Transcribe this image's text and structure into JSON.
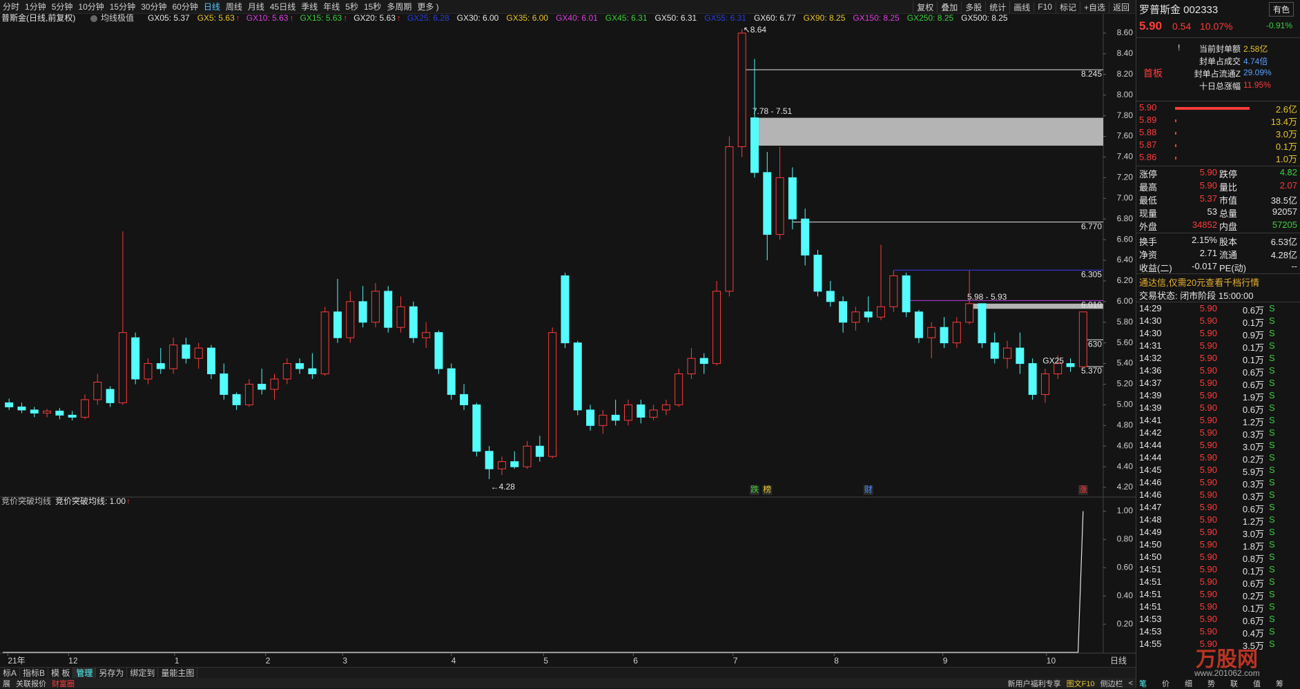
{
  "toolbar": {
    "periods": [
      "分时",
      "1分钟",
      "5分钟",
      "10分钟",
      "15分钟",
      "30分钟",
      "60分钟",
      "日线",
      "周线",
      "月线",
      "45日线",
      "季线",
      "年线",
      "5秒",
      "15秒",
      "多周期",
      "更多 )"
    ],
    "active": "日线",
    "actions": [
      "复权",
      "叠加",
      "多股",
      "统计",
      "画线",
      "F10",
      "标记",
      "+自选",
      "返回"
    ]
  },
  "chart_data": [
    {
      "type": "candlestick",
      "title": "普斯金(日线,前复权)",
      "indicator": "均线极值",
      "ma_labels": [
        {
          "text": "GX05: 5.37",
          "color": "#e6e6e6"
        },
        {
          "text": "GX5: 5.63",
          "color": "#e8c62e",
          "arrow": "↑"
        },
        {
          "text": "GX10: 5.63",
          "color": "#e040e0",
          "arrow": "↑"
        },
        {
          "text": "GX15: 5.63",
          "color": "#3ccf3c",
          "arrow": "↑"
        },
        {
          "text": "GX20: 5.63",
          "color": "#e6e6e6",
          "arrow": "↑"
        },
        {
          "text": "GX25: 6.28",
          "color": "#2a3fd8"
        },
        {
          "text": "GX30: 6.00",
          "color": "#e6e6e6"
        },
        {
          "text": "GX35: 6.00",
          "color": "#e8c62e"
        },
        {
          "text": "GX40: 6.01",
          "color": "#e040e0"
        },
        {
          "text": "GX45: 6.31",
          "color": "#3ccf3c"
        },
        {
          "text": "GX50: 6.31",
          "color": "#e6e6e6"
        },
        {
          "text": "GX55: 6.31",
          "color": "#2a3fd8"
        },
        {
          "text": "GX60: 6.77",
          "color": "#e6e6e6"
        },
        {
          "text": "GX90: 8.25",
          "color": "#e8c62e"
        },
        {
          "text": "GX150: 8.25",
          "color": "#e040e0"
        },
        {
          "text": "GX250: 8.25",
          "color": "#3ccf3c"
        },
        {
          "text": "GX500: 8.25",
          "color": "#e6e6e6"
        }
      ],
      "up_color": "#ff3b3b",
      "down_color": "#54fcfc",
      "candles": [
        [
          5.02,
          5.06,
          4.95,
          4.98
        ],
        [
          4.98,
          5.02,
          4.92,
          4.95
        ],
        [
          4.95,
          4.98,
          4.88,
          4.92
        ],
        [
          4.92,
          4.96,
          4.88,
          4.94
        ],
        [
          4.94,
          4.97,
          4.86,
          4.9
        ],
        [
          4.9,
          4.94,
          4.85,
          4.88
        ],
        [
          4.88,
          5.1,
          4.86,
          5.05
        ],
        [
          5.05,
          5.3,
          5.0,
          5.22
        ],
        [
          5.15,
          5.18,
          4.98,
          5.02
        ],
        [
          5.02,
          6.68,
          5.0,
          5.7
        ],
        [
          5.65,
          5.7,
          5.2,
          5.25
        ],
        [
          5.25,
          5.45,
          5.2,
          5.4
        ],
        [
          5.4,
          5.55,
          5.3,
          5.35
        ],
        [
          5.35,
          5.65,
          5.3,
          5.58
        ],
        [
          5.58,
          5.65,
          5.4,
          5.45
        ],
        [
          5.45,
          5.6,
          5.35,
          5.55
        ],
        [
          5.55,
          5.58,
          5.25,
          5.3
        ],
        [
          5.3,
          5.4,
          5.05,
          5.1
        ],
        [
          5.1,
          5.12,
          4.95,
          5.0
        ],
        [
          5.0,
          5.25,
          4.98,
          5.2
        ],
        [
          5.2,
          5.35,
          5.1,
          5.15
        ],
        [
          5.15,
          5.3,
          5.05,
          5.25
        ],
        [
          5.25,
          5.45,
          5.2,
          5.4
        ],
        [
          5.4,
          5.45,
          5.3,
          5.35
        ],
        [
          5.35,
          5.5,
          5.25,
          5.3
        ],
        [
          5.3,
          5.95,
          5.28,
          5.9
        ],
        [
          5.9,
          6.22,
          5.6,
          5.65
        ],
        [
          5.65,
          6.1,
          5.6,
          6.0
        ],
        [
          6.0,
          6.15,
          5.75,
          5.8
        ],
        [
          5.8,
          6.18,
          5.75,
          6.1
        ],
        [
          6.1,
          6.15,
          5.7,
          5.75
        ],
        [
          5.75,
          6.05,
          5.7,
          5.95
        ],
        [
          5.95,
          6.0,
          5.6,
          5.65
        ],
        [
          5.65,
          5.8,
          5.55,
          5.7
        ],
        [
          5.7,
          5.72,
          5.3,
          5.35
        ],
        [
          5.35,
          5.4,
          5.05,
          5.1
        ],
        [
          5.1,
          5.2,
          4.95,
          5.0
        ],
        [
          5.0,
          5.02,
          4.5,
          4.55
        ],
        [
          4.55,
          4.6,
          4.28,
          4.38
        ],
        [
          4.38,
          4.5,
          4.32,
          4.45
        ],
        [
          4.45,
          4.55,
          4.38,
          4.4
        ],
        [
          4.4,
          4.65,
          4.38,
          4.6
        ],
        [
          4.6,
          4.7,
          4.45,
          4.5
        ],
        [
          4.5,
          5.75,
          4.48,
          5.7
        ],
        [
          6.25,
          6.28,
          5.55,
          5.6
        ],
        [
          5.6,
          5.62,
          4.9,
          4.95
        ],
        [
          4.95,
          5.0,
          4.75,
          4.8
        ],
        [
          4.8,
          4.95,
          4.72,
          4.9
        ],
        [
          4.9,
          5.05,
          4.8,
          4.85
        ],
        [
          4.85,
          5.05,
          4.8,
          5.0
        ],
        [
          5.0,
          5.05,
          4.82,
          4.88
        ],
        [
          4.88,
          5.0,
          4.85,
          4.95
        ],
        [
          4.95,
          5.05,
          4.9,
          5.0
        ],
        [
          5.0,
          5.35,
          4.98,
          5.3
        ],
        [
          5.3,
          5.55,
          5.25,
          5.45
        ],
        [
          5.45,
          5.5,
          5.3,
          5.4
        ],
        [
          5.4,
          6.2,
          5.38,
          6.1
        ],
        [
          6.1,
          7.6,
          6.05,
          7.5
        ],
        [
          7.5,
          8.64,
          7.4,
          8.6
        ],
        [
          7.78,
          8.35,
          7.2,
          7.25
        ],
        [
          7.25,
          7.45,
          6.4,
          6.65
        ],
        [
          6.65,
          7.5,
          6.6,
          7.2
        ],
        [
          7.2,
          7.3,
          6.7,
          6.8
        ],
        [
          6.8,
          6.9,
          6.35,
          6.45
        ],
        [
          6.45,
          6.5,
          6.05,
          6.1
        ],
        [
          6.1,
          6.2,
          5.95,
          6.0
        ],
        [
          6.0,
          6.05,
          5.7,
          5.8
        ],
        [
          5.8,
          5.95,
          5.72,
          5.9
        ],
        [
          5.9,
          6.05,
          5.8,
          5.85
        ],
        [
          5.85,
          6.55,
          5.82,
          5.95
        ],
        [
          5.95,
          6.3,
          5.9,
          6.25
        ],
        [
          6.25,
          6.28,
          5.85,
          5.9
        ],
        [
          5.9,
          5.92,
          5.6,
          5.65
        ],
        [
          5.65,
          5.8,
          5.45,
          5.75
        ],
        [
          5.75,
          5.85,
          5.55,
          5.6
        ],
        [
          5.6,
          5.85,
          5.55,
          5.8
        ],
        [
          5.8,
          6.3,
          5.78,
          5.98
        ],
        [
          5.98,
          5.98,
          5.55,
          5.6
        ],
        [
          5.6,
          5.7,
          5.4,
          5.45
        ],
        [
          5.45,
          5.62,
          5.35,
          5.55
        ],
        [
          5.55,
          5.7,
          5.3,
          5.4
        ],
        [
          5.4,
          5.45,
          5.05,
          5.1
        ],
        [
          5.1,
          5.35,
          5.02,
          5.3
        ],
        [
          5.3,
          5.48,
          5.25,
          5.4
        ],
        [
          5.4,
          5.45,
          5.32,
          5.37
        ],
        [
          5.37,
          5.9,
          5.37,
          5.9
        ]
      ],
      "xlim": [
        0,
        86
      ],
      "xticks": [
        {
          "value": 0.4,
          "label": "21年"
        },
        {
          "value": 5.2,
          "label": "12"
        },
        {
          "value": 13.6,
          "label": "1"
        },
        {
          "value": 20.8,
          "label": "2"
        },
        {
          "value": 26.9,
          "label": "3"
        },
        {
          "value": 35.5,
          "label": "4"
        },
        {
          "value": 42.8,
          "label": "5"
        },
        {
          "value": 49.9,
          "label": "6"
        },
        {
          "value": 57.8,
          "label": "7"
        },
        {
          "value": 65.8,
          "label": "8"
        },
        {
          "value": 74.4,
          "label": "9"
        },
        {
          "value": 82.6,
          "label": "10"
        }
      ],
      "ylim": [
        4.12,
        8.68
      ],
      "yticks": [
        {
          "value": 4.2,
          "label": "4.20"
        },
        {
          "value": 4.4,
          "label": "4.40"
        },
        {
          "value": 4.6,
          "label": "4.60"
        },
        {
          "value": 4.8,
          "label": "4.80"
        },
        {
          "value": 5.0,
          "label": "5.00"
        },
        {
          "value": 5.2,
          "label": "5.20"
        },
        {
          "value": 5.4,
          "label": "5.40"
        },
        {
          "value": 5.6,
          "label": "5.60"
        },
        {
          "value": 5.8,
          "label": "5.80"
        },
        {
          "value": 6.0,
          "label": "6.00"
        },
        {
          "value": 6.2,
          "label": "6.20"
        },
        {
          "value": 6.4,
          "label": "6.40"
        },
        {
          "value": 6.6,
          "label": "6.60"
        },
        {
          "value": 6.8,
          "label": "6.80"
        },
        {
          "value": 7.0,
          "label": "7.00"
        },
        {
          "value": 7.2,
          "label": "7.20"
        },
        {
          "value": 7.4,
          "label": "7.40"
        },
        {
          "value": 7.6,
          "label": "7.60"
        },
        {
          "value": 7.8,
          "label": "7.80"
        },
        {
          "value": 8.0,
          "label": "8.00"
        },
        {
          "value": 8.2,
          "label": "8.20"
        },
        {
          "value": 8.4,
          "label": "8.40"
        },
        {
          "value": 8.6,
          "label": "8.60"
        }
      ],
      "levels": [
        {
          "value": 8.245,
          "label": "8.245",
          "from": 58,
          "color": "#e6e6e6"
        },
        {
          "value": 6.77,
          "label": "6.770",
          "from": 62,
          "color": "#e6e6e6"
        },
        {
          "value": 6.305,
          "label": "6.305",
          "from": 70,
          "color": "#3a3aff"
        },
        {
          "value": 6.01,
          "label": "6.010",
          "from": 71,
          "color": "#c040e0"
        },
        {
          "value": 5.63,
          "label": "5.630",
          "from": 85,
          "color": "#e6e6e6"
        },
        {
          "value": 5.37,
          "label": "5.370",
          "from": 85,
          "color": "#e6e6e6"
        }
      ],
      "zones": [
        {
          "low": 7.51,
          "high": 7.78,
          "label": "7.78 - 7.51",
          "from": 59,
          "color": "#b4b4b4"
        },
        {
          "low": 5.93,
          "high": 5.98,
          "label": "5.98 - 5.93",
          "from": 76,
          "color": "#b4b4b4"
        }
      ],
      "extremes": [
        {
          "value": 8.64,
          "label": "8.64",
          "index": 58,
          "arrow": "↖"
        },
        {
          "value": 4.28,
          "label": "4.28",
          "index": 38,
          "arrow": "←"
        }
      ],
      "line_tags": [
        {
          "text": "GX25",
          "index": 82.3,
          "price": 5.42
        }
      ],
      "markers": [
        {
          "text": "跌",
          "index": 59,
          "color": "#3ccf3c"
        },
        {
          "text": "榜",
          "index": 60,
          "color": "#e8c62e"
        },
        {
          "text": "财",
          "index": 68,
          "color": "#4a8cff"
        },
        {
          "text": "涨",
          "index": 85,
          "color": "#ff3b3b"
        }
      ],
      "period_label": "日线"
    },
    {
      "type": "line",
      "title": "竞价突破均线",
      "series": [
        {
          "name": "竞价突破均线: 1.00",
          "arrow": "↑",
          "color": "#e6e6e6",
          "x": [
            0,
            85.1,
            85.5
          ],
          "values": [
            0,
            0,
            1.0
          ]
        }
      ],
      "xlim": [
        0,
        86
      ],
      "ylim": [
        0,
        1.1
      ],
      "yticks": [
        {
          "value": 0.2,
          "label": "0.20"
        },
        {
          "value": 0.4,
          "label": "0.40"
        },
        {
          "value": 0.6,
          "label": "0.60"
        },
        {
          "value": 0.8,
          "label": "0.80"
        },
        {
          "value": 1.0,
          "label": "1.00"
        }
      ]
    }
  ],
  "quote_panel": {
    "name": "罗普斯金 002333",
    "sector": "有色",
    "sector_change": "-0.91%",
    "price": "5.90",
    "change": "0.54",
    "change_pct": "10.07%",
    "tag": "首板",
    "seal": [
      {
        "label": "当前封单额",
        "value": "2.58亿",
        "color": "#e8c62e",
        "mark": "!"
      },
      {
        "label": "封单占成交",
        "value": "4.74倍",
        "color": "#5aa0ff"
      },
      {
        "label": "封单占流通Z",
        "value": "29.09%",
        "color": "#5aa0ff"
      },
      {
        "label": "十日总涨幅",
        "value": "11.95%",
        "color": "#ff3b3b"
      }
    ],
    "book": [
      [
        "5.90",
        "2.6亿"
      ],
      [
        "5.89",
        "13.4万"
      ],
      [
        "5.88",
        "3.0万"
      ],
      [
        "5.87",
        "0.1万"
      ],
      [
        "5.86",
        "1.0万"
      ]
    ],
    "stats": [
      {
        "label": "涨停",
        "value": "5.90",
        "color": "#ff3b3b"
      },
      {
        "label": "跌停",
        "value": "4.82",
        "color": "#3ccf3c"
      },
      {
        "label": "最高",
        "value": "5.90",
        "color": "#ff3b3b"
      },
      {
        "label": "量比",
        "value": "2.07",
        "color": "#ff3b3b"
      },
      {
        "label": "最低",
        "value": "5.37",
        "color": "#ff3b3b"
      },
      {
        "label": "市值",
        "value": "38.5亿",
        "color": "#e6e6e6"
      },
      {
        "label": "现量",
        "value": "53",
        "color": "#e6e6e6"
      },
      {
        "label": "总量",
        "value": "92057",
        "color": "#e6e6e6"
      },
      {
        "label": "外盘",
        "value": "34852",
        "color": "#ff3b3b"
      },
      {
        "label": "内盘",
        "value": "57205",
        "color": "#3ccf3c"
      },
      {
        "label": "换手",
        "value": "2.15%",
        "color": "#e6e6e6"
      },
      {
        "label": "股本",
        "value": "6.53亿",
        "color": "#e6e6e6"
      },
      {
        "label": "净资",
        "value": "2.71",
        "color": "#e6e6e6"
      },
      {
        "label": "流通",
        "value": "4.28亿",
        "color": "#e6e6e6"
      },
      {
        "label": "收益(二)",
        "value": "-0.017",
        "color": "#e6e6e6"
      },
      {
        "label": "PE(动)",
        "value": "--",
        "color": "#e6e6e6"
      }
    ],
    "promo": "通达信,仅需20元查看千档行情",
    "status": "交易状态: 闭市阶段 15:00:00",
    "ticks": [
      [
        "14:29",
        "5.90",
        "0.6万",
        "S"
      ],
      [
        "14:30",
        "5.90",
        "0.1万",
        "S"
      ],
      [
        "14:30",
        "5.90",
        "0.9万",
        "S"
      ],
      [
        "14:31",
        "5.90",
        "0.1万",
        "S"
      ],
      [
        "14:32",
        "5.90",
        "0.1万",
        "S"
      ],
      [
        "14:36",
        "5.90",
        "0.6万",
        "S"
      ],
      [
        "14:37",
        "5.90",
        "0.6万",
        "S"
      ],
      [
        "14:39",
        "5.90",
        "1.9万",
        "S"
      ],
      [
        "14:39",
        "5.90",
        "0.6万",
        "S"
      ],
      [
        "14:41",
        "5.90",
        "1.2万",
        "S"
      ],
      [
        "14:42",
        "5.90",
        "0.3万",
        "S"
      ],
      [
        "14:44",
        "5.90",
        "3.0万",
        "S"
      ],
      [
        "14:44",
        "5.90",
        "0.2万",
        "S"
      ],
      [
        "14:45",
        "5.90",
        "5.9万",
        "S"
      ],
      [
        "14:46",
        "5.90",
        "0.3万",
        "S"
      ],
      [
        "14:46",
        "5.90",
        "0.3万",
        "S"
      ],
      [
        "14:47",
        "5.90",
        "0.6万",
        "S"
      ],
      [
        "14:48",
        "5.90",
        "1.2万",
        "S"
      ],
      [
        "14:49",
        "5.90",
        "3.0万",
        "S"
      ],
      [
        "14:50",
        "5.90",
        "1.8万",
        "S"
      ],
      [
        "14:50",
        "5.90",
        "0.8万",
        "S"
      ],
      [
        "14:51",
        "5.90",
        "0.1万",
        "S"
      ],
      [
        "14:51",
        "5.90",
        "0.6万",
        "S"
      ],
      [
        "14:51",
        "5.90",
        "0.2万",
        "S"
      ],
      [
        "14:51",
        "5.90",
        "0.1万",
        "S"
      ],
      [
        "14:53",
        "5.90",
        "0.6万",
        "S"
      ],
      [
        "14:53",
        "5.90",
        "0.4万",
        "S"
      ],
      [
        "14:55",
        "5.90",
        "3.5万",
        "S"
      ]
    ],
    "tabs": [
      "笔",
      "价",
      "细",
      "势",
      "联",
      "值",
      "筹"
    ],
    "watermark": "万股网",
    "watermark_url": "www.201062.com"
  },
  "bottom_bar": {
    "tabs": [
      "标A",
      "指标B",
      "模 板",
      "管理",
      "另存为",
      "绑定到",
      "量能主图"
    ],
    "active": "管理"
  },
  "status_bar": {
    "left": [
      "展",
      "关联报价",
      "财富圈"
    ],
    "right": [
      "新用户福利专享",
      "图文F10",
      "侧边栏",
      "<"
    ]
  }
}
